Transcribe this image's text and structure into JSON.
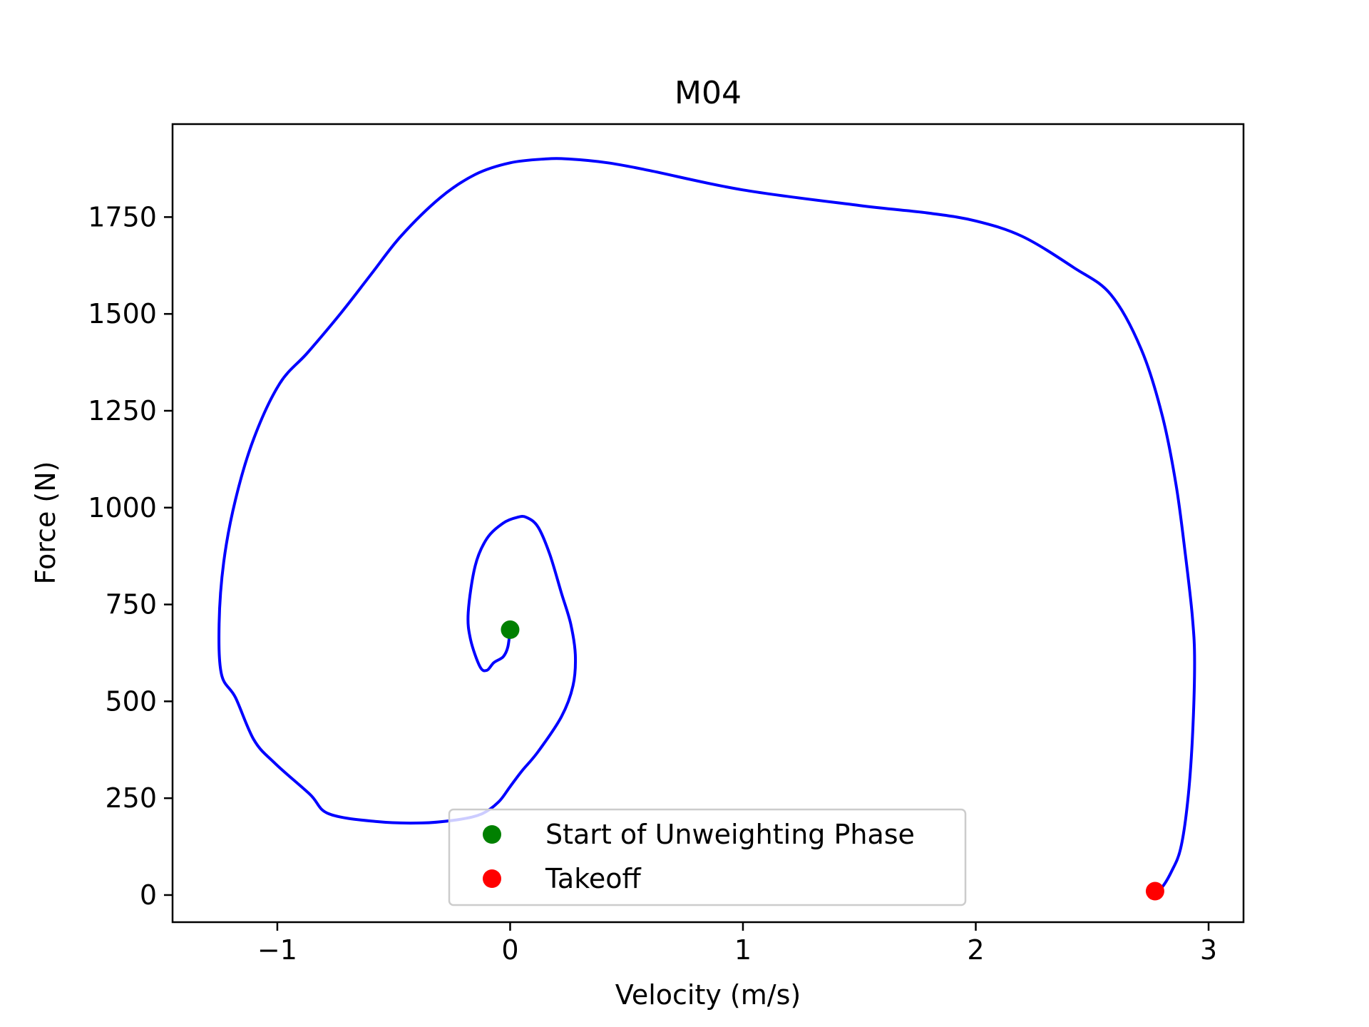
{
  "chart_data": {
    "type": "line",
    "title": "M04",
    "xlabel": "Velocity (m/s)",
    "ylabel": "Force (N)",
    "xlim": [
      -1.45,
      3.15
    ],
    "ylim": [
      -70,
      1990
    ],
    "xticks": [
      {
        "value": -1,
        "label": "−1"
      },
      {
        "value": 0,
        "label": "0"
      },
      {
        "value": 1,
        "label": "1"
      },
      {
        "value": 2,
        "label": "2"
      },
      {
        "value": 3,
        "label": "3"
      }
    ],
    "yticks": [
      {
        "value": 0,
        "label": "0"
      },
      {
        "value": 250,
        "label": "250"
      },
      {
        "value": 500,
        "label": "500"
      },
      {
        "value": 750,
        "label": "750"
      },
      {
        "value": 1000,
        "label": "1000"
      },
      {
        "value": 1250,
        "label": "1250"
      },
      {
        "value": 1500,
        "label": "1500"
      },
      {
        "value": 1750,
        "label": "1750"
      }
    ],
    "grid": false,
    "legend_position": "bottom-center",
    "series": [
      {
        "color": "#0000ff",
        "x": [
          0.0,
          -0.01,
          -0.03,
          -0.07,
          -0.1,
          -0.13,
          -0.17,
          -0.18,
          -0.15,
          -0.1,
          -0.03,
          0.03,
          0.07,
          0.12,
          0.17,
          0.22,
          0.26,
          0.28,
          0.27,
          0.22,
          0.12,
          0.05,
          0.0,
          -0.05,
          -0.12,
          -0.22,
          -0.38,
          -0.58,
          -0.78,
          -0.86,
          -1.01,
          -1.1,
          -1.18,
          -1.24,
          -1.25,
          -1.23,
          -1.18,
          -1.1,
          -0.99,
          -0.87,
          -0.73,
          -0.6,
          -0.47,
          -0.3,
          -0.15,
          0.0,
          0.15,
          0.25,
          0.42,
          0.6,
          1.0,
          1.5,
          1.8,
          2.0,
          2.2,
          2.42,
          2.58,
          2.71,
          2.8,
          2.86,
          2.9,
          2.93,
          2.94,
          2.93,
          2.91,
          2.88,
          2.84,
          2.8,
          2.77
        ],
        "y": [
          685,
          640,
          615,
          600,
          580,
          590,
          660,
          730,
          850,
          920,
          960,
          975,
          975,
          950,
          880,
          780,
          700,
          620,
          540,
          460,
          370,
          320,
          280,
          240,
          210,
          195,
          186,
          190,
          210,
          260,
          340,
          400,
          510,
          570,
          700,
          860,
          1020,
          1180,
          1320,
          1400,
          1500,
          1600,
          1700,
          1800,
          1860,
          1890,
          1900,
          1900,
          1890,
          1870,
          1820,
          1780,
          1760,
          1740,
          1700,
          1620,
          1550,
          1410,
          1240,
          1060,
          880,
          720,
          600,
          400,
          240,
          120,
          60,
          20,
          10
        ]
      }
    ],
    "markers": [
      {
        "x": 0.0,
        "y": 685,
        "color": "#008000",
        "label": "Start of Unweighting Phase"
      },
      {
        "x": 2.77,
        "y": 10,
        "color": "#ff0000",
        "label": "Takeoff"
      }
    ]
  }
}
